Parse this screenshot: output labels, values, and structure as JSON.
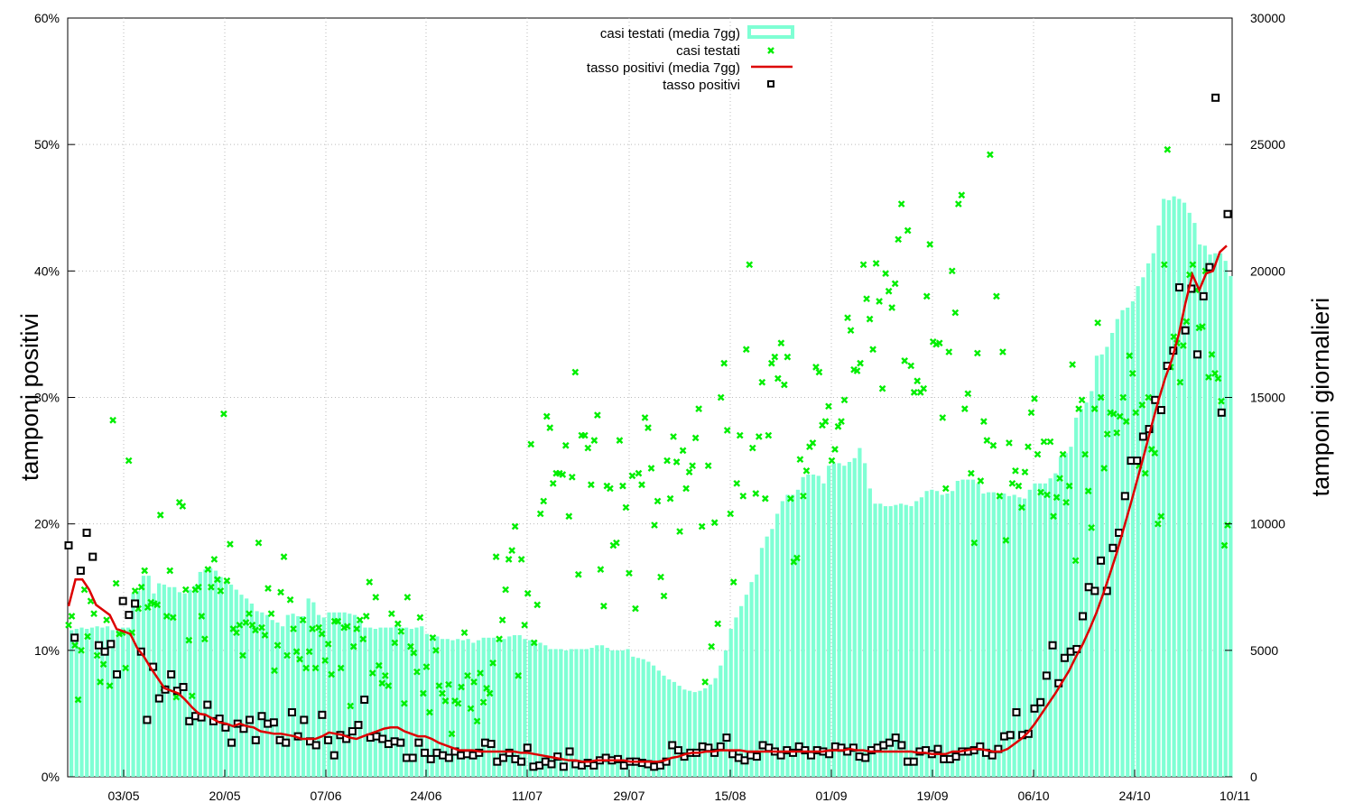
{
  "chart_data": {
    "type": "bar",
    "y_left_label": "tamponi positivi",
    "y_right_label": "tamponi giornalieri",
    "y_left_ticks": [
      "0%",
      "10%",
      "20%",
      "30%",
      "40%",
      "50%",
      "60%"
    ],
    "y_right_ticks": [
      "0",
      "5000",
      "10000",
      "15000",
      "20000",
      "25000",
      "30000"
    ],
    "x_tick_labels": [
      "03/05",
      "20/05",
      "07/06",
      "24/06",
      "11/07",
      "29/07",
      "15/08",
      "01/09",
      "19/09",
      "06/10",
      "24/10",
      "10/11"
    ],
    "ylim_left": [
      0,
      60
    ],
    "ylim_right": [
      0,
      30000
    ],
    "legend_position": "top-center",
    "grid": true,
    "colors": {
      "bars": "#7fffd4",
      "daily_tests": "#00ee00",
      "rate_avg": "#dd0000",
      "rate": "#000000"
    },
    "legend": [
      "casi testati (media 7gg)",
      "casi testati",
      "tasso positivi (media 7gg)",
      "tasso positivi"
    ],
    "series_bars_7d_avg_tests": [
      5800,
      5850,
      5900,
      5850,
      5900,
      5950,
      5900,
      5950,
      5800,
      5850,
      5900,
      5900,
      7250,
      7350,
      7950,
      7950,
      7250,
      7650,
      7600,
      7500,
      7500,
      7300,
      7250,
      7400,
      7550,
      8100,
      8200,
      8250,
      8150,
      7900,
      7750,
      7600,
      7400,
      7200,
      7050,
      6850,
      6550,
      6500,
      6400,
      6200,
      6100,
      5950,
      6400,
      6450,
      6350,
      6350,
      7050,
      6900,
      6400,
      6300,
      6500,
      6500,
      6500,
      6500,
      6450,
      6400,
      6250,
      5900,
      5900,
      5850,
      5900,
      5900,
      5900,
      5950,
      5900,
      5900,
      5850,
      5900,
      5950,
      5650,
      5600,
      5550,
      5450,
      5450,
      5400,
      5450,
      5400,
      5450,
      5300,
      5400,
      5500,
      5500,
      5500,
      5450,
      5450,
      5550,
      5600,
      5600,
      5450,
      5400,
      5400,
      5300,
      5200,
      5050,
      5050,
      5050,
      5000,
      5050,
      5050,
      5050,
      5050,
      5100,
      5200,
      5200,
      5100,
      5000,
      5000,
      5000,
      5050,
      4750,
      4700,
      4650,
      4550,
      4400,
      4200,
      4000,
      3850,
      3750,
      3600,
      3450,
      3400,
      3350,
      3400,
      3500,
      3650,
      3900,
      4400,
      5000,
      5850,
      6300,
      6750,
      7200,
      7700,
      8000,
      9050,
      9500,
      9800,
      10400,
      10900,
      11150,
      11150,
      11350,
      11850,
      11950,
      11950,
      11900,
      11600,
      12300,
      12400,
      12400,
      12300,
      12450,
      12600,
      13000,
      12400,
      11400,
      10800,
      10800,
      10700,
      10700,
      10750,
      10800,
      10750,
      10700,
      10900,
      11050,
      11300,
      11350,
      11300,
      11150,
      11200,
      11300,
      11700,
      11750,
      11750,
      11750,
      11600,
      11200,
      11250,
      11250,
      11200,
      11200,
      11100,
      11150,
      11050,
      11000,
      11350,
      11600,
      11600,
      11600,
      11800,
      12000,
      12650,
      12800,
      13050,
      14200,
      14550,
      14800,
      15250,
      16650,
      16700,
      17000,
      17550,
      18100,
      18450,
      18550,
      18800,
      19400,
      19750,
      20300,
      20700,
      21800,
      22850,
      22800,
      22950,
      22850,
      22700,
      22300,
      21900,
      21050,
      21000,
      20650,
      20700,
      20700,
      20400,
      19800
    ],
    "series_daily_tests": [
      6000,
      6350,
      5200,
      3050,
      5000,
      7400,
      5550,
      6950,
      6450,
      4800,
      3750,
      4450,
      6200,
      3600,
      14100,
      7650,
      5650,
      5700,
      4300,
      12500,
      5700,
      7350,
      6650,
      7500,
      8150,
      6700,
      6900,
      6850,
      6800,
      10350,
      3500,
      6350,
      8150,
      6300,
      3150,
      10850,
      10700,
      7400,
      5400,
      3200,
      7400,
      7500,
      6350,
      5450,
      8200,
      7500,
      8600,
      7800,
      7350,
      14350,
      7750,
      9200,
      5850,
      5700,
      6000,
      4800,
      6100,
      6450,
      6000,
      5800,
      9250,
      5900,
      5600,
      7450,
      6450,
      4200,
      5200,
      7300,
      8700,
      4800,
      7000,
      5850,
      4950,
      4650,
      6200,
      4300,
      4950,
      5850,
      4300,
      5900,
      5650,
      4600,
      5250,
      4050,
      6150,
      6150,
      4300,
      5900,
      5950,
      2800,
      5150,
      5850,
      6200,
      5450,
      6350,
      7700,
      4100,
      7100,
      4400,
      3700,
      4000,
      3600,
      6450,
      5300,
      6050,
      5750,
      2900,
      7100,
      5150,
      4900,
      4150,
      6300,
      3300,
      4350,
      2550,
      5500,
      5000,
      3600,
      3300,
      3000,
      3650,
      1700,
      3000,
      2900,
      3550,
      5700,
      4000,
      2700,
      3750,
      2200,
      4100,
      2950,
      3500,
      3300,
      4500,
      8700,
      5450,
      6200,
      7400,
      8600,
      8950,
      9900,
      4000,
      8600,
      6000,
      7250,
      13150,
      5300,
      6800,
      10400,
      10900,
      14250,
      13800,
      11600,
      12000,
      12000,
      11950,
      13100,
      10300,
      11850,
      16000,
      8000,
      13500,
      13500,
      13000,
      11550,
      13300,
      14300,
      8200,
      6750,
      11500,
      11400,
      9150,
      9250,
      13300,
      11500,
      10650,
      8050,
      11900,
      6650,
      12000,
      11550,
      14200,
      13800,
      12200,
      9950,
      10900,
      7900,
      7150,
      12500,
      11000,
      13450,
      12450,
      9700,
      12900,
      11400,
      12050,
      12300,
      13400,
      14550,
      9900,
      3750,
      12300,
      5150,
      10050,
      6050,
      15000,
      16350,
      13700,
      10400,
      7700,
      11600,
      13500,
      11100,
      16900,
      20250,
      13000,
      11200,
      13450,
      15600,
      11000,
      13500,
      16350,
      16600,
      15750,
      17150,
      15500,
      16600,
      11000,
      8500,
      8650,
      12550,
      11100,
      12100,
      13050,
      13200,
      16200,
      16000,
      13900,
      14050,
      14650,
      12500,
      12950,
      13850,
      14050,
      14900,
      18150,
      17650,
      16100,
      16050,
      16350,
      20250,
      18900,
      18100,
      16900,
      20300,
      18800,
      15350,
      19900,
      19200,
      18550,
      19500,
      21250,
      22650,
      16450,
      21600,
      16250,
      15200,
      15650,
      15200,
      15350,
      19000,
      21050,
      17200,
      17100,
      17150,
      14200,
      11400,
      16800,
      20000,
      18350,
      22650,
      23000,
      14550,
      15150,
      12000,
      9250,
      16750,
      11700,
      14050,
      13300,
      24600,
      13100,
      19000,
      11100,
      16800,
      9350,
      13200,
      11600,
      12100,
      11500,
      10650,
      12050,
      13050,
      14400,
      14950,
      12750,
      11250,
      13250,
      11150,
      13250,
      10300,
      11050,
      11800,
      12750,
      10850,
      11500,
      16300,
      8550,
      14550,
      14900,
      12750,
      11300,
      9850,
      14550,
      17950,
      15000,
      12200,
      13550,
      14400,
      14350,
      13600,
      14250,
      15000,
      14050,
      16650,
      15950,
      14400,
      12300,
      14700,
      12000,
      15000,
      12950,
      12800,
      10000,
      10300,
      20250,
      24800,
      16200,
      17400,
      17150,
      15600,
      17050,
      18000,
      19850,
      20250,
      19250,
      17750,
      17800,
      20000,
      15800,
      16700,
      15950,
      15750,
      14850,
      9150,
      9950
    ],
    "series_rate_7d_avg_pct": [
      13.5,
      15.6,
      15.6,
      14.8,
      13.6,
      13.2,
      12.8,
      11.7,
      11.5,
      11.3,
      10.2,
      9.5,
      8.6,
      7.8,
      7.0,
      6.8,
      6.6,
      6.1,
      5.5,
      5.0,
      4.9,
      4.6,
      4.3,
      4.2,
      4.0,
      4.2,
      4.0,
      3.9,
      3.6,
      3.5,
      3.4,
      3.4,
      3.3,
      3.2,
      3.0,
      3.0,
      3.0,
      3.2,
      3.5,
      3.4,
      3.3,
      3.1,
      3.0,
      3.2,
      3.4,
      3.6,
      3.8,
      3.9,
      3.9,
      3.6,
      3.4,
      3.2,
      3.2,
      3.0,
      2.7,
      2.5,
      2.3,
      2.1,
      2.1,
      2.1,
      2.0,
      2.0,
      2.0,
      2.0,
      2.0,
      2.0,
      1.9,
      1.9,
      1.8,
      1.7,
      1.6,
      1.5,
      1.4,
      1.3,
      1.3,
      1.2,
      1.2,
      1.3,
      1.3,
      1.3,
      1.3,
      1.3,
      1.2,
      1.2,
      1.2,
      1.2,
      1.2,
      1.3,
      1.5,
      1.6,
      1.8,
      1.9,
      1.9,
      2.0,
      2.0,
      2.1,
      2.1,
      2.1,
      2.1,
      2.0,
      2.0,
      2.0,
      2.0,
      2.0,
      2.0,
      2.0,
      2.0,
      2.0,
      2.0,
      2.0,
      2.0,
      2.1,
      2.1,
      2.1,
      2.2,
      2.1,
      2.1,
      2.0,
      2.0,
      2.0,
      2.0,
      2.0,
      2.0,
      2.0,
      1.9,
      1.9,
      1.8,
      1.8,
      1.8,
      2.0,
      2.0,
      2.1,
      2.2,
      2.2,
      2.1,
      2.0,
      2.0,
      2.2,
      2.6,
      3.0,
      3.5,
      4.2,
      5.0,
      5.8,
      6.6,
      7.5,
      8.4,
      9.5,
      10.5,
      11.7,
      13.0,
      14.5,
      16.1,
      17.8,
      19.7,
      21.6,
      23.6,
      25.6,
      27.7,
      29.7,
      31.5,
      33.0,
      35.0,
      37.5,
      39.7,
      38.5,
      39.8,
      40.0,
      41.5,
      42.0
    ],
    "series_rate_daily_pct": [
      18.3,
      11.0,
      16.3,
      19.3,
      17.4,
      10.4,
      9.9,
      10.5,
      8.1,
      13.9,
      12.8,
      13.7,
      9.9,
      4.5,
      8.7,
      6.2,
      6.9,
      8.1,
      6.8,
      7.1,
      4.4,
      4.8,
      4.7,
      5.7,
      4.4,
      4.6,
      3.9,
      2.7,
      4.2,
      3.8,
      4.5,
      2.9,
      4.8,
      4.2,
      4.3,
      2.9,
      2.7,
      5.1,
      3.2,
      4.5,
      2.8,
      2.5,
      4.9,
      2.9,
      1.7,
      3.3,
      3.0,
      3.6,
      4.1,
      6.1,
      3.1,
      3.2,
      3.0,
      2.6,
      2.8,
      2.7,
      1.5,
      1.5,
      2.7,
      1.9,
      1.4,
      1.9,
      1.7,
      1.5,
      2.0,
      1.7,
      1.8,
      1.7,
      1.9,
      2.7,
      2.6,
      1.2,
      1.5,
      1.9,
      1.4,
      1.2,
      2.3,
      0.8,
      0.9,
      1.2,
      1.0,
      1.6,
      0.8,
      2.0,
      1.0,
      0.9,
      1.1,
      0.9,
      1.3,
      1.5,
      1.3,
      1.4,
      0.9,
      1.2,
      1.2,
      1.1,
      1.0,
      0.8,
      0.9,
      1.2,
      2.5,
      2.1,
      1.6,
      1.9,
      1.9,
      2.4,
      2.3,
      1.9,
      2.4,
      3.1,
      1.8,
      1.5,
      1.3,
      1.7,
      1.6,
      2.5,
      2.3,
      2.0,
      1.7,
      2.1,
      1.9,
      2.4,
      2.1,
      1.7,
      2.1,
      2.0,
      1.8,
      2.4,
      2.3,
      2.0,
      2.3,
      1.6,
      1.5,
      2.1,
      2.3,
      2.5,
      2.7,
      3.1,
      2.5,
      1.2,
      1.2,
      2.0,
      2.1,
      1.8,
      2.2,
      1.4,
      1.4,
      1.6,
      2.0,
      2.0,
      2.1,
      2.4,
      1.9,
      1.7,
      2.2,
      3.2,
      3.3,
      5.1,
      3.3,
      3.4,
      5.4,
      5.9,
      8.0,
      10.4,
      7.4,
      9.4,
      9.9,
      10.1,
      12.7,
      15.0,
      14.7,
      17.1,
      14.7,
      18.1,
      19.3,
      22.2,
      25.0,
      25.0,
      26.9,
      27.5,
      29.8,
      29.0,
      32.5,
      33.7,
      38.7,
      35.3,
      38.6,
      33.4,
      38.0,
      40.3,
      53.7,
      28.8,
      44.5
    ]
  }
}
